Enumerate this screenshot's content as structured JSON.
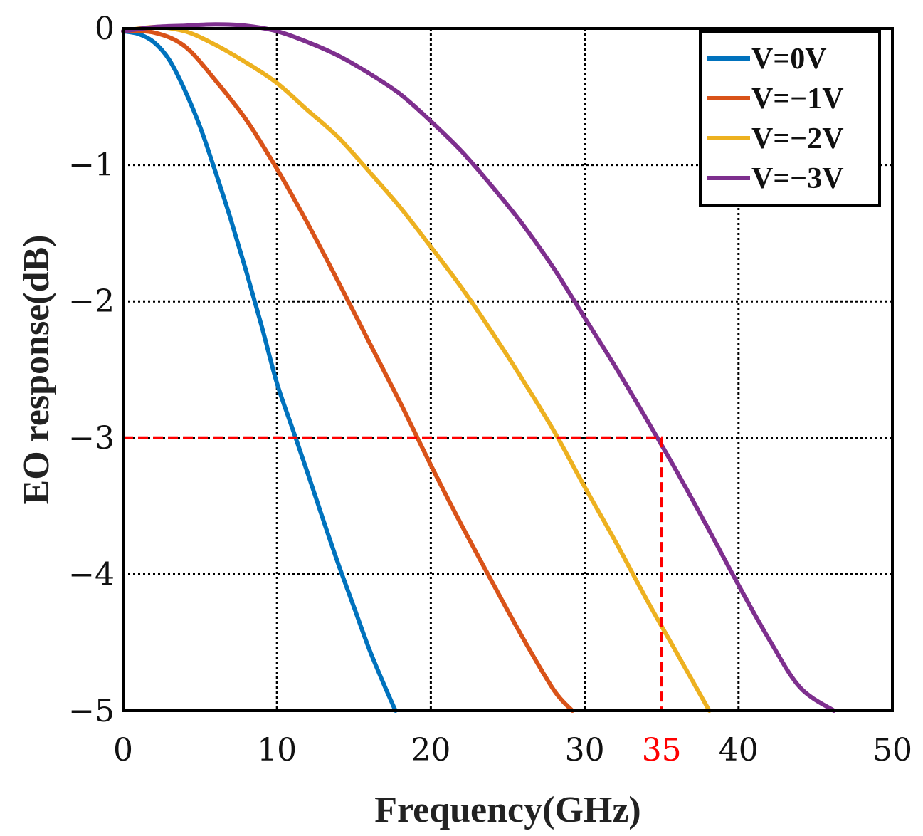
{
  "chart_data": {
    "type": "line",
    "xlabel": "Frequency(GHz)",
    "ylabel": "EO response(dB)",
    "xlim": [
      0,
      50
    ],
    "ylim": [
      -5,
      0
    ],
    "xticks": [
      0,
      10,
      20,
      30,
      40,
      50
    ],
    "xtick_labels": [
      "0",
      "10",
      "20",
      "30",
      "40",
      "50"
    ],
    "yticks": [
      0,
      -1,
      -2,
      -3,
      -4,
      -5
    ],
    "ytick_labels": [
      "0",
      "−1",
      "−2",
      "−3",
      "−4",
      "−5"
    ],
    "grid": true,
    "legend_position": "top-right",
    "series": [
      {
        "name": "V=0V",
        "color": "#0072BD",
        "x": [
          0,
          1,
          2,
          3,
          4,
          5,
          6,
          7,
          8,
          9,
          10,
          11,
          12,
          13,
          14,
          15,
          16,
          17,
          17.7
        ],
        "y": [
          -0.02,
          -0.04,
          -0.1,
          -0.23,
          -0.45,
          -0.72,
          -1.05,
          -1.4,
          -1.78,
          -2.18,
          -2.6,
          -2.93,
          -3.26,
          -3.6,
          -3.93,
          -4.24,
          -4.55,
          -4.82,
          -5.0
        ]
      },
      {
        "name": "V=−1V",
        "color": "#D95319",
        "x": [
          0,
          2,
          4,
          6,
          8,
          10,
          12,
          14,
          16,
          18,
          20,
          22,
          24,
          26,
          28,
          29.2
        ],
        "y": [
          -0.02,
          -0.03,
          -0.13,
          -0.38,
          -0.67,
          -1.03,
          -1.43,
          -1.86,
          -2.3,
          -2.74,
          -3.2,
          -3.64,
          -4.06,
          -4.47,
          -4.85,
          -5.0
        ]
      },
      {
        "name": "V=−2V",
        "color": "#EDB120",
        "x": [
          0,
          2,
          4,
          6,
          8,
          10,
          12,
          14,
          16,
          18,
          20,
          22,
          24,
          26,
          28,
          30,
          32,
          34,
          36,
          38.1
        ],
        "y": [
          -0.02,
          0.01,
          -0.02,
          -0.12,
          -0.25,
          -0.4,
          -0.6,
          -0.8,
          -1.05,
          -1.31,
          -1.6,
          -1.9,
          -2.23,
          -2.58,
          -2.95,
          -3.36,
          -3.76,
          -4.18,
          -4.58,
          -5.0
        ]
      },
      {
        "name": "V=−3V",
        "color": "#7E2F8E",
        "x": [
          0,
          2,
          4,
          6,
          8,
          10,
          12,
          14,
          16,
          18,
          20,
          22,
          24,
          26,
          28,
          30,
          32,
          34,
          36,
          38,
          40,
          42,
          44,
          46.2
        ],
        "y": [
          -0.02,
          0.01,
          0.02,
          0.03,
          0.02,
          -0.02,
          -0.1,
          -0.2,
          -0.33,
          -0.48,
          -0.68,
          -0.9,
          -1.16,
          -1.44,
          -1.76,
          -2.12,
          -2.48,
          -2.86,
          -3.25,
          -3.66,
          -4.08,
          -4.48,
          -4.83,
          -5.0
        ]
      }
    ],
    "annotations": [
      {
        "type": "reference-lines",
        "color": "#FF0000",
        "x": 35,
        "y": -3,
        "label": "35",
        "label_color": "#FF0000"
      }
    ]
  }
}
